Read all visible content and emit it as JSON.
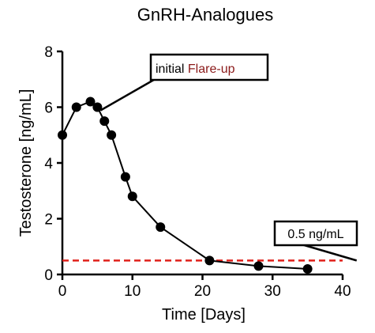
{
  "chart_data": {
    "type": "line",
    "title": "GnRH-Analogues",
    "xlabel": "Time [Days]",
    "ylabel": "Testosterone [ng/mL]",
    "xlim": [
      0,
      40
    ],
    "ylim": [
      0,
      8
    ],
    "xticks": [
      "0",
      "10",
      "20",
      "30",
      "40"
    ],
    "yticks": [
      "0",
      "2",
      "4",
      "6",
      "8"
    ],
    "grid": false,
    "series": [
      {
        "x": [
          0,
          2,
          4,
          5,
          6,
          7,
          9,
          10,
          14,
          21,
          28,
          35
        ],
        "y": [
          5.0,
          6.0,
          6.2,
          6.0,
          5.5,
          5.0,
          3.5,
          2.8,
          1.7,
          0.5,
          0.3,
          0.2
        ],
        "color": "#000000"
      }
    ],
    "reference_line": {
      "y": 0.5,
      "color": "#e0201b",
      "style": "dashed"
    },
    "annotations": [
      {
        "text_prefix": "initial ",
        "text_highlight": "Flare-up",
        "highlight_color": "#8b1a1a",
        "points_to": {
          "x": 5,
          "y": 6.0
        }
      },
      {
        "text": "0.5 ng/mL",
        "points_to": {
          "x": 26,
          "y": 0.5
        }
      }
    ]
  }
}
